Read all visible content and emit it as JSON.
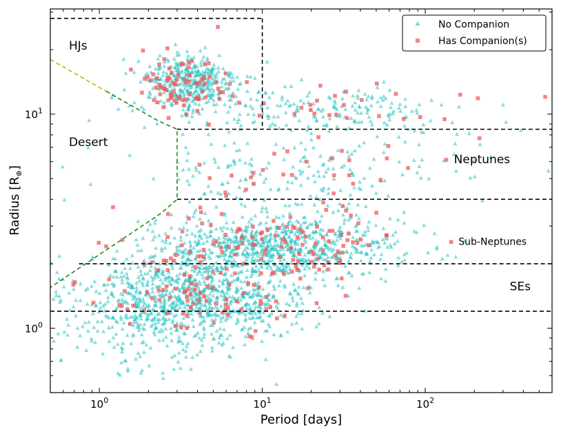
{
  "chart_data": {
    "type": "scatter",
    "xscale": "log",
    "yscale": "log",
    "xlim": [
      0.5,
      600
    ],
    "ylim": [
      0.5,
      31
    ],
    "xlabel": "Period [days]",
    "ylabel_text": "Radius [R",
    "ylabel_symbol": "⊕",
    "ylabel_close": "]",
    "x_ticks": [
      {
        "value": 1,
        "base": "10",
        "exp": "0"
      },
      {
        "value": 10,
        "base": "10",
        "exp": "1"
      },
      {
        "value": 100,
        "base": "10",
        "exp": "2"
      }
    ],
    "y_ticks": [
      {
        "value": 1,
        "base": "10",
        "exp": "0"
      },
      {
        "value": 10,
        "base": "10",
        "exp": "1"
      }
    ],
    "legend": {
      "position": "top-right",
      "entries": [
        {
          "label": "No Companion",
          "color": "#2ac3c3",
          "marker": "triangle"
        },
        {
          "label": "Has Companion(s)",
          "color": "#f05a5a",
          "marker": "square"
        }
      ]
    },
    "regions": [
      {
        "name": "HJs",
        "label": "HJs",
        "p_min": 0.5,
        "p_max": 10,
        "r_min": 8.5,
        "r_max": 28,
        "label_at": [
          0.65,
          20
        ],
        "size": 17
      },
      {
        "name": "Desert",
        "label": "Desert",
        "label_at": [
          0.65,
          7.1
        ],
        "size": 17
      },
      {
        "name": "Neptunes",
        "label": "Neptunes",
        "p_min": 3,
        "p_max": 600,
        "r_min": 4.0,
        "r_max": 8.5,
        "label_at": [
          150,
          5.9
        ],
        "size": 17
      },
      {
        "name": "Sub-Neptunes",
        "label": "Sub-Neptunes",
        "p_min": 0.75,
        "p_max": 600,
        "r_min": 2.0,
        "r_max": 4.0,
        "label_at": [
          160,
          2.45
        ],
        "size": 14
      },
      {
        "name": "SEs",
        "label": "SEs",
        "p_min": 0.5,
        "p_max": 600,
        "r_min": 1.2,
        "r_max": 2.0,
        "label_at": [
          330,
          1.5
        ],
        "size": 17
      }
    ],
    "desert_boundary": {
      "yellow_segment": [
        [
          0.5,
          18
        ],
        [
          1.1,
          12.8
        ]
      ],
      "green_segment": [
        [
          1.1,
          12.8
        ],
        [
          2.3,
          9.3
        ],
        [
          3.0,
          8.5
        ],
        [
          3.0,
          4.0
        ],
        [
          2.4,
          3.45
        ],
        [
          0.5,
          1.55
        ]
      ]
    },
    "series": [
      {
        "name": "No Companion",
        "n_points": 2600,
        "color": "#2ac3c3",
        "clusters": [
          {
            "weight": 0.3,
            "p_center": 4.0,
            "p_sigma_dex": 0.35,
            "r_center": 1.45,
            "r_sigma_dex": 0.09
          },
          {
            "weight": 0.3,
            "p_center": 12.0,
            "p_sigma_dex": 0.38,
            "r_center": 2.4,
            "r_sigma_dex": 0.07
          },
          {
            "weight": 0.15,
            "p_center": 3.6,
            "p_sigma_dex": 0.15,
            "r_center": 14.0,
            "r_sigma_dex": 0.07
          },
          {
            "weight": 0.07,
            "p_center": 20.0,
            "p_sigma_dex": 0.45,
            "r_center": 10.5,
            "r_sigma_dex": 0.05
          },
          {
            "weight": 0.09,
            "p_center": 15.0,
            "p_sigma_dex": 0.55,
            "r_center": 5.5,
            "r_sigma_dex": 0.11
          },
          {
            "weight": 0.09,
            "p_center": 2.5,
            "p_sigma_dex": 0.35,
            "r_center": 1.0,
            "r_sigma_dex": 0.1
          }
        ]
      },
      {
        "name": "Has Companion(s)",
        "n_points": 340,
        "color": "#f05a5a",
        "clusters": [
          {
            "weight": 0.28,
            "p_center": 5.0,
            "p_sigma_dex": 0.38,
            "r_center": 1.4,
            "r_sigma_dex": 0.09
          },
          {
            "weight": 0.28,
            "p_center": 13.0,
            "p_sigma_dex": 0.38,
            "r_center": 2.4,
            "r_sigma_dex": 0.07
          },
          {
            "weight": 0.24,
            "p_center": 3.3,
            "p_sigma_dex": 0.15,
            "r_center": 14.0,
            "r_sigma_dex": 0.07
          },
          {
            "weight": 0.08,
            "p_center": 40.0,
            "p_sigma_dex": 0.45,
            "r_center": 10.5,
            "r_sigma_dex": 0.06
          },
          {
            "weight": 0.12,
            "p_center": 18.0,
            "p_sigma_dex": 0.5,
            "r_center": 4.8,
            "r_sigma_dex": 0.12
          }
        ]
      }
    ]
  }
}
